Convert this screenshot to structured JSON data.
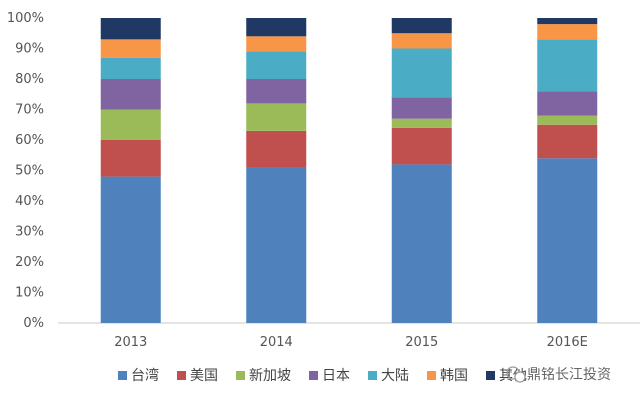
{
  "chart_data": {
    "type": "bar",
    "stacked": true,
    "percent": true,
    "categories": [
      "2013",
      "2014",
      "2015",
      "2016E"
    ],
    "series": [
      {
        "name": "台湾",
        "color": "#4F81BD",
        "values": [
          48,
          51,
          52,
          54
        ]
      },
      {
        "name": "美国",
        "color": "#C0504D",
        "values": [
          12,
          12,
          12,
          11
        ]
      },
      {
        "name": "新加坡",
        "color": "#9BBB59",
        "values": [
          10,
          9,
          3,
          3
        ]
      },
      {
        "name": "日本",
        "color": "#8064A2",
        "values": [
          10,
          8,
          7,
          8
        ]
      },
      {
        "name": "大陆",
        "color": "#4BACC6",
        "values": [
          7,
          9,
          16,
          17
        ]
      },
      {
        "name": "韩国",
        "color": "#F79646",
        "values": [
          6,
          5,
          5,
          5
        ]
      },
      {
        "name": "其他",
        "color": "#1F3864",
        "values": [
          7,
          6,
          5,
          2
        ]
      }
    ],
    "yticks": [
      "0%",
      "10%",
      "20%",
      "30%",
      "40%",
      "50%",
      "60%",
      "70%",
      "80%",
      "90%",
      "100%"
    ],
    "ylim": [
      0,
      100
    ],
    "grid": false,
    "legend_position": "bottom"
  },
  "watermark": {
    "text": "鼎铭长江投资",
    "icon": "wechat-icon"
  }
}
